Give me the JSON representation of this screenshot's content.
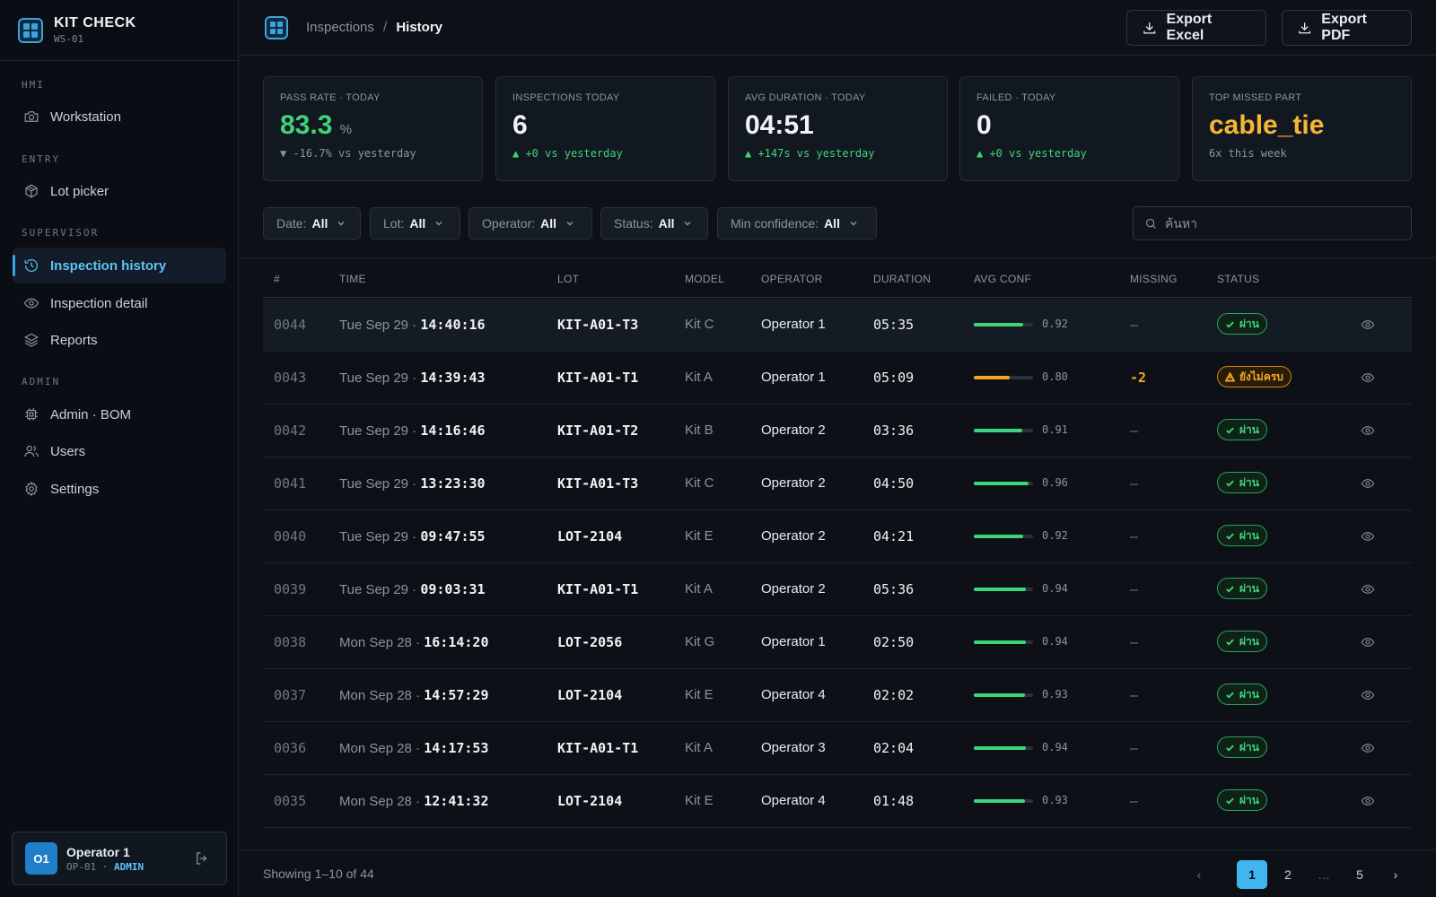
{
  "brand": {
    "title": "KIT CHECK",
    "subtitle": "WS-01"
  },
  "sidebar": {
    "sections": [
      "HMI",
      "ENTRY",
      "SUPERVISOR",
      "ADMIN"
    ],
    "items": [
      {
        "label": "Workstation",
        "icon": "camera-icon"
      },
      {
        "label": "Lot picker",
        "icon": "package-icon"
      },
      {
        "label": "Inspection history",
        "icon": "history-icon",
        "active": true
      },
      {
        "label": "Inspection detail",
        "icon": "eye-icon"
      },
      {
        "label": "Reports",
        "icon": "layers-icon"
      },
      {
        "label": "Admin · BOM",
        "icon": "chip-icon"
      },
      {
        "label": "Users",
        "icon": "users-icon"
      },
      {
        "label": "Settings",
        "icon": "gear-icon"
      }
    ]
  },
  "user": {
    "initials": "O1",
    "name": "Operator 1",
    "id": "OP-01",
    "sep": " · ",
    "role": "ADMIN"
  },
  "breadcrumb": {
    "parent": "Inspections",
    "sep": "/",
    "current": "History"
  },
  "actions": {
    "export_excel": "Export Excel",
    "export_pdf": "Export PDF"
  },
  "kpis": [
    {
      "label": "PASS RATE · TODAY",
      "value": "83.3",
      "unit": "%",
      "sub": "▼ -16.7% vs yesterday",
      "value_color": "#3fd47a",
      "sub_color": "#8b949e"
    },
    {
      "label": "INSPECTIONS TODAY",
      "value": "6",
      "unit": "",
      "sub": "▲ +0 vs yesterday",
      "value_color": "#f0f3f6",
      "sub_color": "#3fd47a"
    },
    {
      "label": "AVG DURATION · TODAY",
      "value": "04:51",
      "unit": "",
      "sub": "▲ +147s vs yesterday",
      "value_color": "#f0f3f6",
      "sub_color": "#3fd47a"
    },
    {
      "label": "FAILED · TODAY",
      "value": "0",
      "unit": "",
      "sub": "▲ +0 vs yesterday",
      "value_color": "#f0f3f6",
      "sub_color": "#3fd47a"
    },
    {
      "label": "TOP MISSED PART",
      "value": "cable_tie",
      "unit": "",
      "sub": "6x this week",
      "value_color": "#f5b731",
      "sub_color": "#8b949e"
    }
  ],
  "filters": [
    {
      "label": "Date:",
      "value": "All"
    },
    {
      "label": "Lot:",
      "value": "All"
    },
    {
      "label": "Operator:",
      "value": "All"
    },
    {
      "label": "Status:",
      "value": "All"
    },
    {
      "label": "Min confidence:",
      "value": "All"
    }
  ],
  "search": {
    "placeholder": "ค้นหา",
    "value": ""
  },
  "table": {
    "columns": [
      "#",
      "TIME",
      "LOT",
      "MODEL",
      "OPERATOR",
      "DURATION",
      "AVG CONF",
      "MISSING",
      "STATUS"
    ],
    "rows": [
      {
        "id": "0044",
        "day": "Tue Sep 29",
        "sep": " · ",
        "time": "14:40:16",
        "lot": "KIT-A01-T3",
        "model": "Kit C",
        "operator": "Operator 1",
        "duration": "05:35",
        "conf": "0.92",
        "conf_num": 0.92,
        "missing": "—",
        "status": "ผ่าน",
        "status_type": "pass"
      },
      {
        "id": "0043",
        "day": "Tue Sep 29",
        "sep": " · ",
        "time": "14:39:43",
        "lot": "KIT-A01-T1",
        "model": "Kit A",
        "operator": "Operator 1",
        "duration": "05:09",
        "conf": "0.80",
        "conf_num": 0.8,
        "missing": "-2",
        "status": "ยังไม่ครบ",
        "status_type": "warn"
      },
      {
        "id": "0042",
        "day": "Tue Sep 29",
        "sep": " · ",
        "time": "14:16:46",
        "lot": "KIT-A01-T2",
        "model": "Kit B",
        "operator": "Operator 2",
        "duration": "03:36",
        "conf": "0.91",
        "conf_num": 0.91,
        "missing": "—",
        "status": "ผ่าน",
        "status_type": "pass"
      },
      {
        "id": "0041",
        "day": "Tue Sep 29",
        "sep": " · ",
        "time": "13:23:30",
        "lot": "KIT-A01-T3",
        "model": "Kit C",
        "operator": "Operator 2",
        "duration": "04:50",
        "conf": "0.96",
        "conf_num": 0.96,
        "missing": "—",
        "status": "ผ่าน",
        "status_type": "pass"
      },
      {
        "id": "0040",
        "day": "Tue Sep 29",
        "sep": " · ",
        "time": "09:47:55",
        "lot": "LOT-2104",
        "model": "Kit E",
        "operator": "Operator 2",
        "duration": "04:21",
        "conf": "0.92",
        "conf_num": 0.92,
        "missing": "—",
        "status": "ผ่าน",
        "status_type": "pass"
      },
      {
        "id": "0039",
        "day": "Tue Sep 29",
        "sep": " · ",
        "time": "09:03:31",
        "lot": "KIT-A01-T1",
        "model": "Kit A",
        "operator": "Operator 2",
        "duration": "05:36",
        "conf": "0.94",
        "conf_num": 0.94,
        "missing": "—",
        "status": "ผ่าน",
        "status_type": "pass"
      },
      {
        "id": "0038",
        "day": "Mon Sep 28",
        "sep": " · ",
        "time": "16:14:20",
        "lot": "LOT-2056",
        "model": "Kit G",
        "operator": "Operator 1",
        "duration": "02:50",
        "conf": "0.94",
        "conf_num": 0.94,
        "missing": "—",
        "status": "ผ่าน",
        "status_type": "pass"
      },
      {
        "id": "0037",
        "day": "Mon Sep 28",
        "sep": " · ",
        "time": "14:57:29",
        "lot": "LOT-2104",
        "model": "Kit E",
        "operator": "Operator 4",
        "duration": "02:02",
        "conf": "0.93",
        "conf_num": 0.93,
        "missing": "—",
        "status": "ผ่าน",
        "status_type": "pass"
      },
      {
        "id": "0036",
        "day": "Mon Sep 28",
        "sep": " · ",
        "time": "14:17:53",
        "lot": "KIT-A01-T1",
        "model": "Kit A",
        "operator": "Operator 3",
        "duration": "02:04",
        "conf": "0.94",
        "conf_num": 0.94,
        "missing": "—",
        "status": "ผ่าน",
        "status_type": "pass"
      },
      {
        "id": "0035",
        "day": "Mon Sep 28",
        "sep": " · ",
        "time": "12:41:32",
        "lot": "LOT-2104",
        "model": "Kit E",
        "operator": "Operator 4",
        "duration": "01:48",
        "conf": "0.93",
        "conf_num": 0.93,
        "missing": "—",
        "status": "ผ่าน",
        "status_type": "pass"
      }
    ]
  },
  "pagination": {
    "showing": "Showing 1–10 of 44",
    "prev": "‹",
    "pages": [
      "1",
      "2",
      "…",
      "5"
    ],
    "next": "›",
    "current": "1"
  },
  "colors": {
    "accent": "#3fb6f0",
    "pass": "#3fd47a",
    "warn": "#f5a623",
    "bg": "#0d1117"
  }
}
